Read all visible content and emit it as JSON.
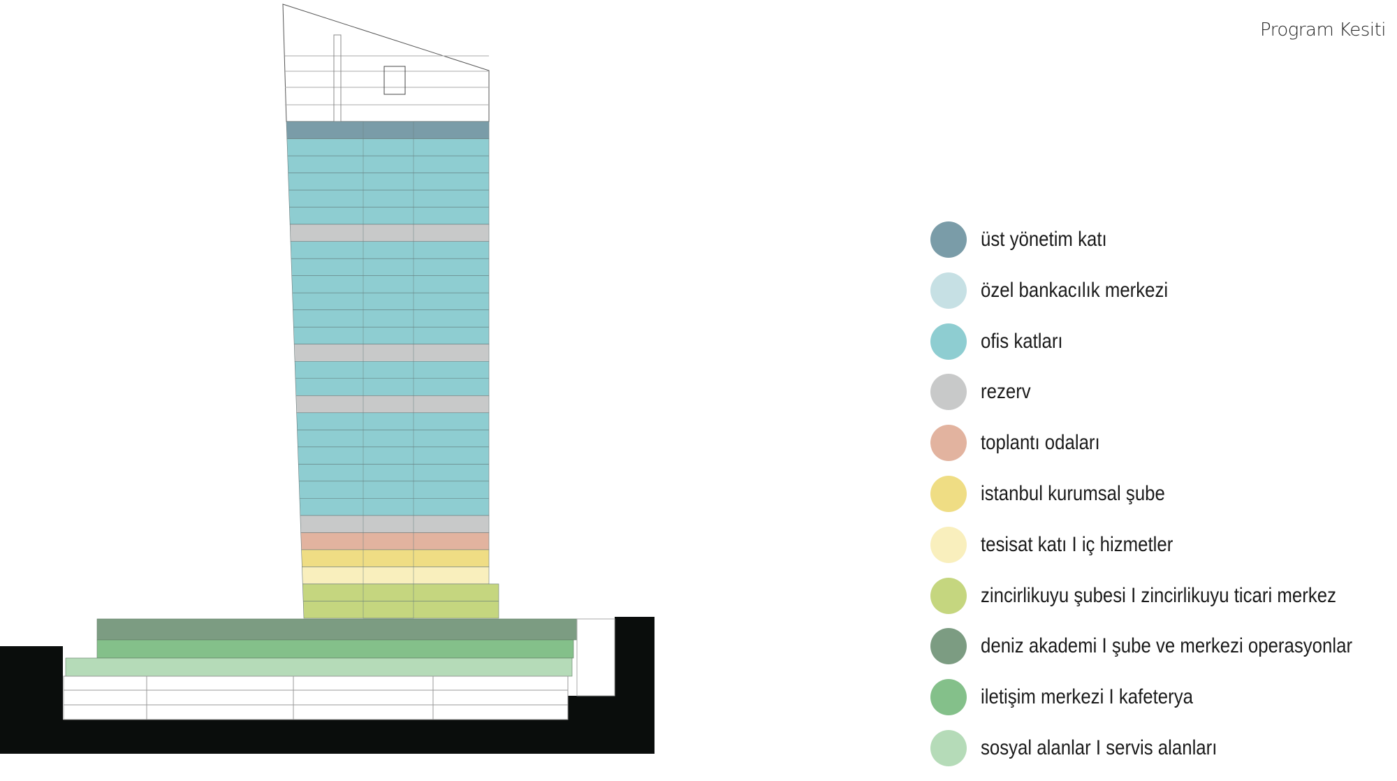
{
  "title": "Program Kesiti",
  "legend": [
    {
      "label": "üst yönetim katı",
      "color": "#7a9ca8"
    },
    {
      "label": "özel bankacılık merkezi",
      "color": "#c6e0e4"
    },
    {
      "label": "ofis katları",
      "color": "#8ecdd1"
    },
    {
      "label": "rezerv",
      "color": "#c8c9c9"
    },
    {
      "label": "toplantı odaları",
      "color": "#e2b39f"
    },
    {
      "label": "istanbul kurumsal şube",
      "color": "#efdd84"
    },
    {
      "label": "tesisat katı I iç hizmetler",
      "color": "#f9efbd"
    },
    {
      "label": "zincirlikuyu şubesi I zincirlikuyu ticari merkez",
      "color": "#c5d67f"
    },
    {
      "label": "deniz akademi I şube ve merkezi operasyonlar",
      "color": "#7c9c82"
    },
    {
      "label": "iletişim merkezi I kafeterya",
      "color": "#84c08a"
    },
    {
      "label": "sosyal alanlar I servis alanları",
      "color": "#b5dbb8"
    }
  ],
  "tower_bands": [
    {
      "program": "üst yönetim katı",
      "floors": 1
    },
    {
      "program": "ofis katları",
      "floors": 5
    },
    {
      "program": "rezerv",
      "floors": 1
    },
    {
      "program": "ofis katları",
      "floors": 6
    },
    {
      "program": "rezerv",
      "floors": 1
    },
    {
      "program": "ofis katları",
      "floors": 2
    },
    {
      "program": "rezerv",
      "floors": 1
    },
    {
      "program": "ofis katları",
      "floors": 6
    },
    {
      "program": "rezerv",
      "floors": 1
    },
    {
      "program": "toplantı odaları",
      "floors": 1
    },
    {
      "program": "istanbul kurumsal şube",
      "floors": 1
    },
    {
      "program": "tesisat katı I iç hizmetler",
      "floors": 1
    },
    {
      "program": "zincirlikuyu şubesi I zincirlikuyu ticari merkez",
      "floors": 2
    }
  ],
  "podium_bands": [
    {
      "program": "deniz akademi I şube ve merkezi operasyonlar"
    },
    {
      "program": "iletişim merkezi I kafeterya"
    },
    {
      "program": "sosyal alanlar I servis alanları"
    }
  ]
}
